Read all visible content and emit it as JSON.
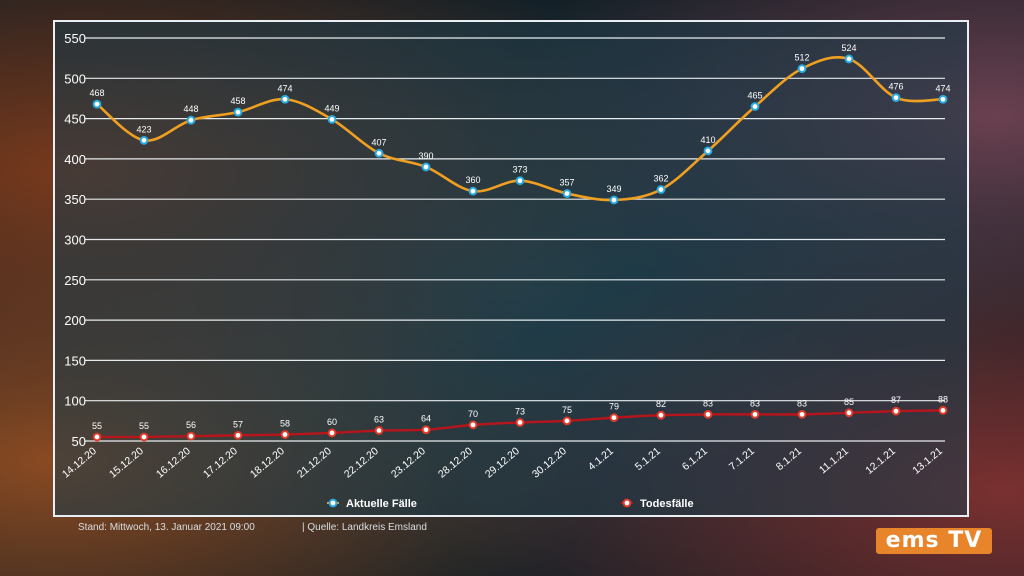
{
  "chart_data": {
    "type": "line",
    "categories": [
      "14.12.20",
      "15.12.20",
      "16.12.20",
      "17.12.20",
      "18.12.20",
      "21.12.20",
      "22.12.20",
      "23.12.20",
      "28.12.20",
      "29.12.20",
      "30.12.20",
      "4.1.21",
      "5.1.21",
      "6.1.21",
      "7.1.21",
      "8.1.21",
      "11.1.21",
      "12.1.21",
      "13.1.21"
    ],
    "series": [
      {
        "name": "Aktuelle Fälle",
        "color": "#f0a020",
        "marker": "#27a9e1",
        "values": [
          468,
          423,
          448,
          458,
          474,
          449,
          407,
          390,
          360,
          373,
          357,
          349,
          362,
          410,
          465,
          512,
          524,
          476,
          474
        ]
      },
      {
        "name": "Todesfälle",
        "color": "#b8141c",
        "marker": "#e03a2a",
        "values": [
          55,
          55,
          56,
          57,
          58,
          60,
          63,
          64,
          70,
          73,
          75,
          79,
          82,
          83,
          83,
          83,
          85,
          87,
          88
        ]
      }
    ],
    "yticks": [
      50,
      100,
      150,
      200,
      250,
      300,
      350,
      400,
      450,
      500,
      550
    ],
    "ylim": [
      50,
      550
    ],
    "grid": true,
    "legend": "bottom-center"
  },
  "footer": {
    "stand": "Stand:  Mittwoch, 13. Januar 2021 09:00",
    "quelle": "| Quelle:    Landkreis Emsland"
  },
  "logo": "ems TV"
}
